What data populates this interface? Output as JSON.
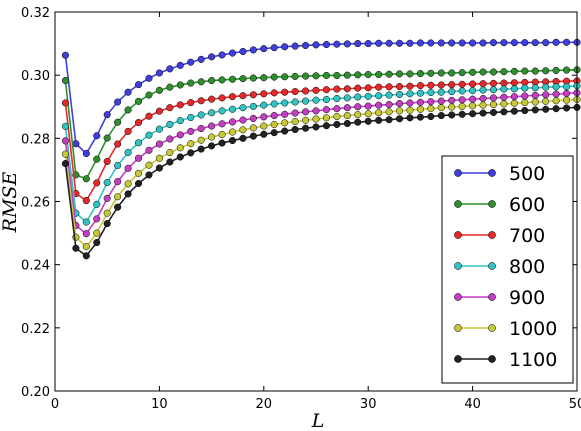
{
  "chart_data": {
    "type": "line",
    "xlabel": "L",
    "ylabel": "RMSE",
    "xlim": [
      0,
      50
    ],
    "ylim": [
      0.2,
      0.32
    ],
    "xticks": [
      "0",
      "10",
      "20",
      "30",
      "40",
      "50"
    ],
    "yticks": [
      "0.20",
      "0.22",
      "0.24",
      "0.26",
      "0.28",
      "0.30",
      "0.32"
    ],
    "grid": false,
    "legend_position": "lower-right",
    "x": [
      1,
      2,
      3,
      4,
      5,
      6,
      7,
      8,
      9,
      10,
      11,
      12,
      13,
      14,
      15,
      16,
      17,
      18,
      19,
      20,
      21,
      22,
      23,
      24,
      25,
      26,
      27,
      28,
      29,
      30,
      31,
      32,
      33,
      34,
      35,
      36,
      37,
      38,
      39,
      40,
      41,
      42,
      43,
      44,
      45,
      46,
      47,
      48,
      49,
      50
    ],
    "series": [
      {
        "name": "500",
        "color": "#3f3fdb",
        "values": [
          0.3063,
          0.2783,
          0.2752,
          0.2808,
          0.2875,
          0.2915,
          0.2946,
          0.297,
          0.299,
          0.3007,
          0.302,
          0.3031,
          0.3041,
          0.305,
          0.3058,
          0.3064,
          0.307,
          0.3075,
          0.308,
          0.3084,
          0.3087,
          0.309,
          0.3092,
          0.3094,
          0.3096,
          0.3097,
          0.3098,
          0.3099,
          0.31,
          0.31,
          0.3101,
          0.3101,
          0.3101,
          0.3101,
          0.3102,
          0.3102,
          0.3102,
          0.3102,
          0.3102,
          0.3102,
          0.3102,
          0.3103,
          0.3103,
          0.3103,
          0.3103,
          0.3103,
          0.3103,
          0.3104,
          0.3104,
          0.3104
        ]
      },
      {
        "name": "600",
        "color": "#2f8f2f",
        "values": [
          0.2983,
          0.2684,
          0.2672,
          0.2734,
          0.2801,
          0.2851,
          0.289,
          0.2917,
          0.2937,
          0.2952,
          0.2962,
          0.2969,
          0.2975,
          0.2979,
          0.2983,
          0.2985,
          0.2987,
          0.2989,
          0.2991,
          0.2992,
          0.2994,
          0.2995,
          0.2996,
          0.2997,
          0.2998,
          0.2999,
          0.2999,
          0.3,
          0.3001,
          0.3002,
          0.3002,
          0.3003,
          0.3004,
          0.3004,
          0.3005,
          0.3006,
          0.3007,
          0.3007,
          0.3008,
          0.3009,
          0.301,
          0.301,
          0.3011,
          0.3012,
          0.3013,
          0.3013,
          0.3014,
          0.3015,
          0.3016,
          0.3017
        ]
      },
      {
        "name": "700",
        "color": "#e32a2a",
        "values": [
          0.2912,
          0.2625,
          0.2603,
          0.2659,
          0.2727,
          0.2782,
          0.2822,
          0.285,
          0.287,
          0.2886,
          0.2897,
          0.2906,
          0.2913,
          0.2919,
          0.2924,
          0.2928,
          0.2932,
          0.2935,
          0.2938,
          0.2941,
          0.2944,
          0.2946,
          0.2948,
          0.295,
          0.2952,
          0.2954,
          0.2956,
          0.2957,
          0.2959,
          0.296,
          0.2962,
          0.2963,
          0.2964,
          0.2965,
          0.2967,
          0.2968,
          0.2969,
          0.297,
          0.2971,
          0.2972,
          0.2973,
          0.2974,
          0.2975,
          0.2976,
          0.2977,
          0.2978,
          0.2979,
          0.298,
          0.2981,
          0.2982
        ]
      },
      {
        "name": "800",
        "color": "#33c2c2",
        "values": [
          0.2838,
          0.2563,
          0.2535,
          0.2591,
          0.266,
          0.2714,
          0.2755,
          0.2786,
          0.281,
          0.2829,
          0.2844,
          0.2856,
          0.2866,
          0.2874,
          0.2881,
          0.2887,
          0.2892,
          0.2897,
          0.2901,
          0.2905,
          0.2909,
          0.2912,
          0.2915,
          0.2918,
          0.2921,
          0.2923,
          0.2926,
          0.2928,
          0.2931,
          0.2933,
          0.2935,
          0.2937,
          0.2939,
          0.2941,
          0.2943,
          0.2945,
          0.2946,
          0.2948,
          0.295,
          0.2951,
          0.2953,
          0.2954,
          0.2956,
          0.2957,
          0.2959,
          0.296,
          0.2962,
          0.2963,
          0.2964,
          0.2966
        ]
      },
      {
        "name": "900",
        "color": "#c23fc2",
        "values": [
          0.2792,
          0.2524,
          0.2498,
          0.2545,
          0.261,
          0.2663,
          0.2705,
          0.2737,
          0.2762,
          0.2782,
          0.2798,
          0.2811,
          0.2822,
          0.2831,
          0.2839,
          0.2846,
          0.2852,
          0.2858,
          0.2863,
          0.2868,
          0.2872,
          0.2876,
          0.288,
          0.2884,
          0.2887,
          0.2891,
          0.2894,
          0.2897,
          0.29,
          0.2902,
          0.2905,
          0.2907,
          0.291,
          0.2912,
          0.2914,
          0.2916,
          0.2918,
          0.292,
          0.2922,
          0.2924,
          0.2926,
          0.2928,
          0.293,
          0.2932,
          0.2934,
          0.2936,
          0.2938,
          0.294,
          0.2942,
          0.2944
        ]
      },
      {
        "name": "1000",
        "color": "#c7c73a",
        "values": [
          0.275,
          0.2487,
          0.2457,
          0.25,
          0.2563,
          0.2615,
          0.2656,
          0.2689,
          0.2715,
          0.2737,
          0.2755,
          0.277,
          0.2783,
          0.2794,
          0.2804,
          0.2812,
          0.282,
          0.2827,
          0.2833,
          0.2839,
          0.2844,
          0.2849,
          0.2853,
          0.2857,
          0.2861,
          0.2865,
          0.2869,
          0.2872,
          0.2875,
          0.2878,
          0.2881,
          0.2884,
          0.2887,
          0.2889,
          0.2892,
          0.2894,
          0.2897,
          0.2899,
          0.2901,
          0.2903,
          0.2905,
          0.2907,
          0.2909,
          0.2911,
          0.2913,
          0.2915,
          0.2917,
          0.2919,
          0.2921,
          0.2923
        ]
      },
      {
        "name": "1100",
        "color": "#222222",
        "values": [
          0.272,
          0.2452,
          0.2428,
          0.247,
          0.253,
          0.2582,
          0.2624,
          0.2657,
          0.2684,
          0.2706,
          0.2725,
          0.2741,
          0.2754,
          0.2766,
          0.2776,
          0.2785,
          0.2793,
          0.28,
          0.2807,
          0.2813,
          0.2818,
          0.2823,
          0.2828,
          0.2832,
          0.2836,
          0.284,
          0.2844,
          0.2847,
          0.2851,
          0.2854,
          0.2857,
          0.2859,
          0.2862,
          0.2865,
          0.2867,
          0.2869,
          0.2872,
          0.2874,
          0.2876,
          0.2878,
          0.288,
          0.2882,
          0.2884,
          0.2886,
          0.2888,
          0.289,
          0.2892,
          0.2894,
          0.2896,
          0.2898
        ]
      }
    ]
  }
}
